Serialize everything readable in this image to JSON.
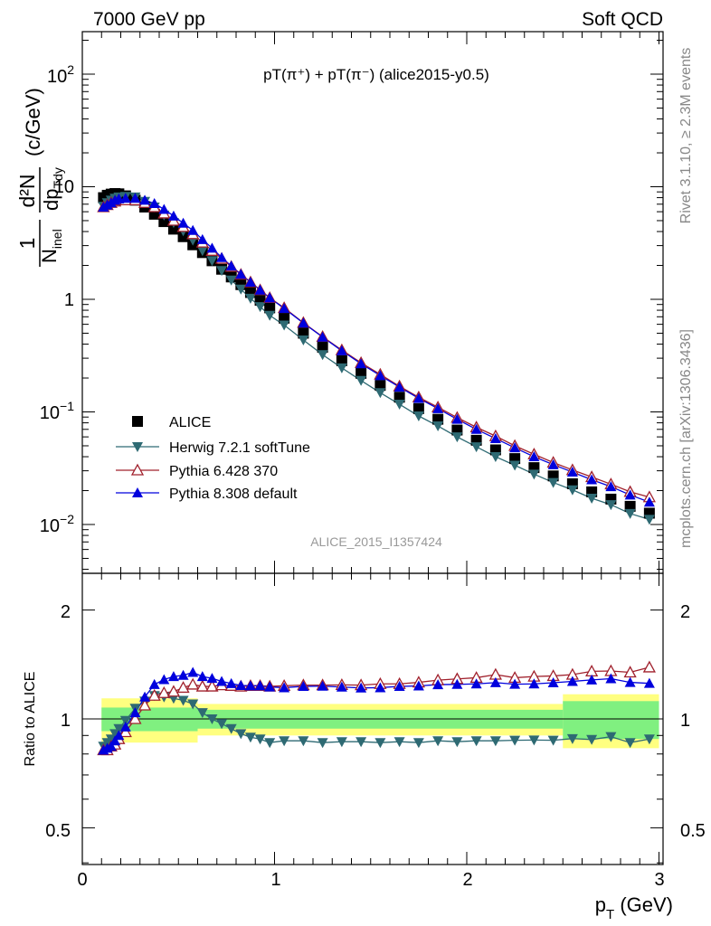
{
  "header": {
    "left": "7000 GeV pp",
    "right": "Soft QCD"
  },
  "plot_title": {
    "main": "pT(π⁺) + pT(π⁻) (alice2015-y0.5)"
  },
  "y_label": {
    "frac_one": "1",
    "frac_nnel": "N",
    "nnel_sub": "inel",
    "d2n": "d²N",
    "dpt": "dp",
    "dpt_sub": "Tdy",
    "unit": "(c/GeV)"
  },
  "x_label": {
    "p": "p",
    "sub": "T",
    "unit": "(GeV)"
  },
  "ratio_label": "Ratio to ALICE",
  "side_text": {
    "rivet": "Rivet 3.1.10, ≥ 2.3M events",
    "mcplots": "mcplots.cern.ch [arXiv:1306.3436]"
  },
  "analysis_tag": "ALICE_2015_I1357424",
  "legend": [
    {
      "label": "ALICE",
      "marker": "square",
      "color": "#000000"
    },
    {
      "label": "Herwig 7.2.1 softTune",
      "marker": "triangle-down",
      "color": "#2e6a73"
    },
    {
      "label": "Pythia 6.428 370",
      "marker": "triangle-open",
      "color": "#a0202c"
    },
    {
      "label": "Pythia 8.308 default",
      "marker": "triangle-up",
      "color": "#0000dd"
    }
  ],
  "chart_data": {
    "type": "scatter",
    "title": "pT(π⁺) + pT(π⁻) (alice2015-y0.5)",
    "xlabel": "p_T (GeV)",
    "ylabel": "1/N_inel d²N/dp_T dy (c/GeV)",
    "y_scale": "log",
    "xlim": [
      0,
      3.05
    ],
    "ylim": [
      0.003,
      250
    ],
    "ratio_ylim": [
      0.35,
      2.35
    ],
    "x_ticks": [
      "0",
      "1",
      "2",
      "3"
    ],
    "y_ticks": [
      "10⁻²",
      "10⁻¹",
      "1",
      "10",
      "10²"
    ],
    "ratio_ticks": [
      "0.5",
      "1",
      "2"
    ],
    "x": [
      0.11,
      0.13,
      0.15,
      0.17,
      0.19,
      0.225,
      0.275,
      0.325,
      0.375,
      0.425,
      0.475,
      0.525,
      0.575,
      0.625,
      0.675,
      0.725,
      0.775,
      0.825,
      0.875,
      0.925,
      0.975,
      1.05,
      1.15,
      1.25,
      1.35,
      1.45,
      1.55,
      1.65,
      1.75,
      1.85,
      1.95,
      2.05,
      2.15,
      2.25,
      2.35,
      2.45,
      2.55,
      2.65,
      2.75,
      2.85,
      2.95
    ],
    "series": [
      {
        "name": "ALICE",
        "values": [
          8.0,
          8.4,
          8.6,
          8.7,
          8.65,
          8.3,
          7.6,
          6.6,
          5.7,
          4.9,
          4.2,
          3.6,
          3.05,
          2.6,
          2.2,
          1.85,
          1.58,
          1.35,
          1.15,
          0.98,
          0.84,
          0.68,
          0.5,
          0.375,
          0.285,
          0.22,
          0.172,
          0.135,
          0.107,
          0.086,
          0.069,
          0.056,
          0.046,
          0.0385,
          0.032,
          0.027,
          0.023,
          0.0195,
          0.0168,
          0.0145,
          0.0126
        ]
      },
      {
        "name": "Herwig 7.2.1 softTune",
        "values": [
          6.7,
          7.2,
          7.6,
          7.9,
          8.1,
          8.2,
          8.1,
          7.4,
          6.6,
          5.6,
          4.8,
          4.05,
          3.35,
          2.7,
          2.2,
          1.8,
          1.48,
          1.23,
          1.02,
          0.86,
          0.72,
          0.59,
          0.435,
          0.322,
          0.246,
          0.19,
          0.148,
          0.117,
          0.092,
          0.075,
          0.06,
          0.049,
          0.04,
          0.0336,
          0.028,
          0.0236,
          0.0203,
          0.0171,
          0.015,
          0.0125,
          0.0111
        ]
      },
      {
        "name": "Pythia 6.428 370",
        "values": [
          6.6,
          6.9,
          7.2,
          7.4,
          7.6,
          7.6,
          7.6,
          7.2,
          6.6,
          5.8,
          5.0,
          4.4,
          3.8,
          3.2,
          2.7,
          2.3,
          1.95,
          1.66,
          1.42,
          1.21,
          1.03,
          0.84,
          0.62,
          0.465,
          0.354,
          0.273,
          0.215,
          0.169,
          0.135,
          0.11,
          0.089,
          0.073,
          0.061,
          0.05,
          0.042,
          0.0355,
          0.0305,
          0.0264,
          0.0228,
          0.0195,
          0.0175
        ]
      },
      {
        "name": "Pythia 8.308 default",
        "values": [
          6.6,
          6.9,
          7.2,
          7.6,
          7.8,
          7.9,
          7.9,
          7.6,
          7.1,
          6.3,
          5.5,
          4.75,
          4.1,
          3.4,
          2.85,
          2.35,
          1.98,
          1.67,
          1.42,
          1.21,
          1.03,
          0.83,
          0.615,
          0.462,
          0.349,
          0.268,
          0.21,
          0.166,
          0.132,
          0.107,
          0.086,
          0.07,
          0.058,
          0.048,
          0.04,
          0.034,
          0.0292,
          0.025,
          0.0217,
          0.0183,
          0.0158
        ]
      }
    ],
    "ratio_series": [
      {
        "name": "Herwig 7.2.1 softTune",
        "values": [
          0.84,
          0.86,
          0.88,
          0.91,
          0.94,
          0.99,
          1.07,
          1.12,
          1.16,
          1.15,
          1.14,
          1.125,
          1.1,
          1.04,
          1.0,
          0.97,
          0.94,
          0.91,
          0.89,
          0.88,
          0.86,
          0.87,
          0.87,
          0.86,
          0.865,
          0.865,
          0.86,
          0.865,
          0.86,
          0.87,
          0.865,
          0.87,
          0.87,
          0.873,
          0.874,
          0.873,
          0.882,
          0.877,
          0.893,
          0.86,
          0.88
        ]
      },
      {
        "name": "Pythia 6.428 370",
        "values": [
          0.82,
          0.82,
          0.84,
          0.85,
          0.88,
          0.92,
          1.0,
          1.09,
          1.16,
          1.18,
          1.19,
          1.22,
          1.245,
          1.23,
          1.23,
          1.24,
          1.235,
          1.23,
          1.235,
          1.235,
          1.23,
          1.235,
          1.24,
          1.24,
          1.242,
          1.24,
          1.25,
          1.25,
          1.262,
          1.28,
          1.29,
          1.3,
          1.326,
          1.3,
          1.31,
          1.315,
          1.326,
          1.354,
          1.357,
          1.345,
          1.389
        ]
      },
      {
        "name": "Pythia 8.308 default",
        "values": [
          0.82,
          0.83,
          0.84,
          0.87,
          0.9,
          0.95,
          1.04,
          1.15,
          1.245,
          1.285,
          1.31,
          1.32,
          1.345,
          1.31,
          1.295,
          1.27,
          1.253,
          1.237,
          1.235,
          1.235,
          1.226,
          1.22,
          1.23,
          1.232,
          1.225,
          1.218,
          1.22,
          1.23,
          1.234,
          1.244,
          1.246,
          1.25,
          1.26,
          1.247,
          1.25,
          1.259,
          1.27,
          1.282,
          1.292,
          1.262,
          1.254
        ]
      }
    ],
    "data_bands": {
      "stat_plus_syst_inner": [
        [
          0.1,
          0.6,
          0.075
        ],
        [
          0.6,
          2.5,
          0.06
        ],
        [
          2.5,
          3.0,
          0.12
        ]
      ],
      "total_outer": [
        [
          0.1,
          0.6,
          0.14
        ],
        [
          0.6,
          2.5,
          0.1
        ],
        [
          2.5,
          3.0,
          0.17
        ]
      ]
    },
    "grid": false,
    "legend_position": "center-left"
  }
}
